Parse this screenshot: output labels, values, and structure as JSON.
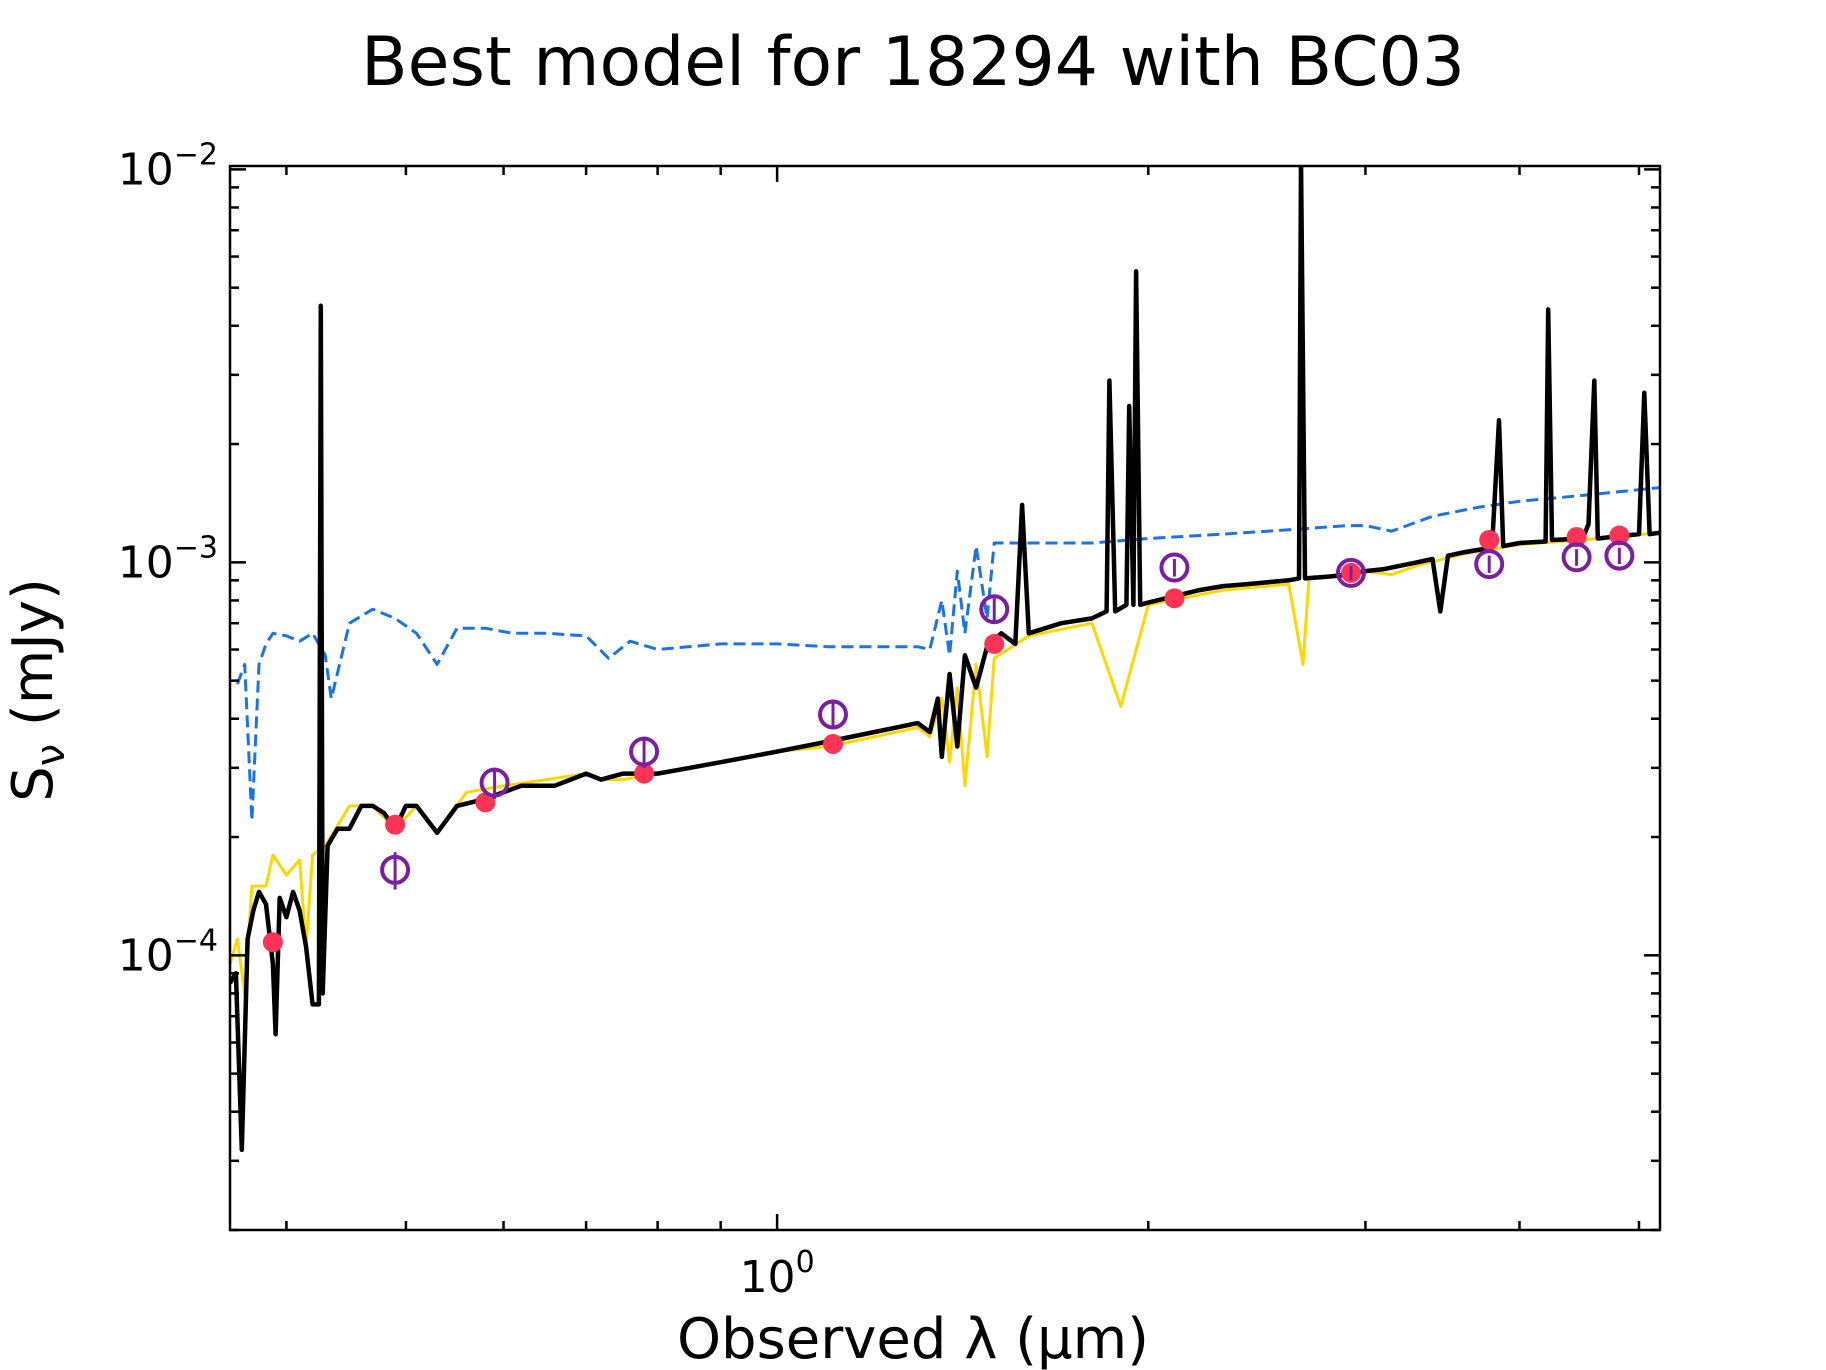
{
  "chart_data": {
    "type": "line",
    "title": "Best model for 18294 with BC03",
    "xlabel": "Observed λ (μm)",
    "ylabel_main": "S",
    "ylabel_sub": "ν",
    "ylabel_unit": " (mJy)",
    "xscale": "log",
    "yscale": "log",
    "xlim": [
      0.36,
      5.2
    ],
    "ylim": [
      2e-05,
      0.0102
    ],
    "xticks": [
      {
        "base": "10",
        "exp": "0",
        "value": 1.0
      }
    ],
    "yticks": [
      {
        "base": "10",
        "exp": "−4",
        "value": 0.0001
      },
      {
        "base": "10",
        "exp": "−3",
        "value": 0.001
      },
      {
        "base": "10",
        "exp": "−2",
        "value": 0.01
      }
    ],
    "grid": false,
    "colors": {
      "model": "#000000",
      "attenuated_stellar": "#ffd700",
      "unattenuated_stellar": "#1a73e8",
      "model_fluxes": "#ff3355",
      "observed_fluxes": "#7b1fa2"
    },
    "series": [
      {
        "key": "unattenuated_stellar",
        "style": "dashed",
        "points": [
          [
            0.365,
            0.00049
          ],
          [
            0.37,
            0.00055
          ],
          [
            0.375,
            0.00022
          ],
          [
            0.38,
            0.00055
          ],
          [
            0.385,
            0.00062
          ],
          [
            0.39,
            0.00066
          ],
          [
            0.4,
            0.00065
          ],
          [
            0.41,
            0.00063
          ],
          [
            0.42,
            0.00066
          ],
          [
            0.43,
            0.00058
          ],
          [
            0.435,
            0.00045
          ],
          [
            0.45,
            0.0007
          ],
          [
            0.47,
            0.00076
          ],
          [
            0.49,
            0.00072
          ],
          [
            0.51,
            0.00066
          ],
          [
            0.53,
            0.00055
          ],
          [
            0.55,
            0.00068
          ],
          [
            0.58,
            0.00068
          ],
          [
            0.61,
            0.00066
          ],
          [
            0.65,
            0.00066
          ],
          [
            0.7,
            0.00065
          ],
          [
            0.73,
            0.00057
          ],
          [
            0.76,
            0.00063
          ],
          [
            0.8,
            0.0006
          ],
          [
            0.9,
            0.00062
          ],
          [
            1.0,
            0.00062
          ],
          [
            1.1,
            0.00061
          ],
          [
            1.2,
            0.00061
          ],
          [
            1.3,
            0.00061
          ],
          [
            1.33,
            0.0006
          ],
          [
            1.36,
            0.0008
          ],
          [
            1.38,
            0.00058
          ],
          [
            1.4,
            0.00095
          ],
          [
            1.42,
            0.00066
          ],
          [
            1.45,
            0.0011
          ],
          [
            1.48,
            0.00072
          ],
          [
            1.5,
            0.00112
          ],
          [
            1.6,
            0.00112
          ],
          [
            1.8,
            0.00112
          ],
          [
            2.0,
            0.00115
          ],
          [
            2.3,
            0.00118
          ],
          [
            2.6,
            0.00121
          ],
          [
            2.9,
            0.00124
          ],
          [
            3.0,
            0.00124
          ],
          [
            3.15,
            0.0012
          ],
          [
            3.4,
            0.00131
          ],
          [
            3.7,
            0.00138
          ],
          [
            4.0,
            0.00143
          ],
          [
            4.5,
            0.00148
          ],
          [
            5.2,
            0.00155
          ]
        ]
      },
      {
        "key": "attenuated_stellar",
        "style": "solid",
        "points": [
          [
            0.36,
            9.5e-05
          ],
          [
            0.365,
            0.00011
          ],
          [
            0.37,
            8e-05
          ],
          [
            0.375,
            0.00015
          ],
          [
            0.385,
            0.00015
          ],
          [
            0.39,
            0.00018
          ],
          [
            0.4,
            0.00016
          ],
          [
            0.41,
            0.000175
          ],
          [
            0.415,
            0.000105
          ],
          [
            0.42,
            0.00018
          ],
          [
            0.43,
            0.00019
          ],
          [
            0.45,
            0.00024
          ],
          [
            0.47,
            0.00024
          ],
          [
            0.49,
            0.00021
          ],
          [
            0.51,
            0.00024
          ],
          [
            0.53,
            0.000205
          ],
          [
            0.56,
            0.00026
          ],
          [
            0.6,
            0.00027
          ],
          [
            0.65,
            0.00028
          ],
          [
            0.7,
            0.00029
          ],
          [
            0.72,
            0.00028
          ],
          [
            0.75,
            0.00028
          ],
          [
            0.8,
            0.00029
          ],
          [
            0.9,
            0.00031
          ],
          [
            1.0,
            0.00033
          ],
          [
            1.1,
            0.00034
          ],
          [
            1.2,
            0.00036
          ],
          [
            1.3,
            0.00038
          ],
          [
            1.33,
            0.00036
          ],
          [
            1.36,
            0.00045
          ],
          [
            1.38,
            0.00031
          ],
          [
            1.4,
            0.00048
          ],
          [
            1.42,
            0.00027
          ],
          [
            1.45,
            0.00055
          ],
          [
            1.48,
            0.00032
          ],
          [
            1.5,
            0.00057
          ],
          [
            1.6,
            0.00065
          ],
          [
            1.8,
            0.0007
          ],
          [
            1.9,
            0.00043
          ],
          [
            2.0,
            0.00078
          ],
          [
            2.3,
            0.00085
          ],
          [
            2.6,
            0.00088
          ],
          [
            2.67,
            0.00055
          ],
          [
            2.7,
            0.00091
          ],
          [
            3.0,
            0.00095
          ],
          [
            3.15,
            0.00093
          ],
          [
            3.3,
            0.00098
          ],
          [
            3.6,
            0.00105
          ],
          [
            4.0,
            0.00111
          ],
          [
            4.5,
            0.00114
          ],
          [
            5.2,
            0.00119
          ]
        ]
      },
      {
        "key": "model",
        "style": "solid",
        "points": [
          [
            0.36,
            8.5e-05
          ],
          [
            0.364,
            9e-05
          ],
          [
            0.368,
            3.2e-05
          ],
          [
            0.372,
            0.00011
          ],
          [
            0.376,
            0.00013
          ],
          [
            0.38,
            0.000145
          ],
          [
            0.385,
            0.000135
          ],
          [
            0.39,
            9.5e-05
          ],
          [
            0.392,
            6.3e-05
          ],
          [
            0.395,
            0.00014
          ],
          [
            0.4,
            0.000125
          ],
          [
            0.405,
            0.000145
          ],
          [
            0.41,
            0.00013
          ],
          [
            0.415,
            0.000105
          ],
          [
            0.42,
            7.5e-05
          ],
          [
            0.425,
            7.5e-05
          ],
          [
            0.4265,
            0.0045
          ],
          [
            0.428,
            8e-05
          ],
          [
            0.432,
            0.00019
          ],
          [
            0.44,
            0.00021
          ],
          [
            0.45,
            0.00021
          ],
          [
            0.46,
            0.00024
          ],
          [
            0.47,
            0.00024
          ],
          [
            0.48,
            0.00023
          ],
          [
            0.49,
            0.00021
          ],
          [
            0.5,
            0.00024
          ],
          [
            0.51,
            0.00024
          ],
          [
            0.53,
            0.000205
          ],
          [
            0.55,
            0.00024
          ],
          [
            0.58,
            0.00025
          ],
          [
            0.62,
            0.00027
          ],
          [
            0.66,
            0.00027
          ],
          [
            0.7,
            0.00029
          ],
          [
            0.72,
            0.00028
          ],
          [
            0.75,
            0.00029
          ],
          [
            0.8,
            0.00029
          ],
          [
            0.85,
            0.0003
          ],
          [
            0.9,
            0.00031
          ],
          [
            1.0,
            0.00033
          ],
          [
            1.1,
            0.00035
          ],
          [
            1.2,
            0.00037
          ],
          [
            1.3,
            0.00039
          ],
          [
            1.33,
            0.00037
          ],
          [
            1.35,
            0.00045
          ],
          [
            1.36,
            0.00032
          ],
          [
            1.38,
            0.00052
          ],
          [
            1.4,
            0.00034
          ],
          [
            1.42,
            0.00058
          ],
          [
            1.45,
            0.00048
          ],
          [
            1.48,
            0.00061
          ],
          [
            1.52,
            0.00066
          ],
          [
            1.56,
            0.00062
          ],
          [
            1.58,
            0.0014
          ],
          [
            1.6,
            0.00066
          ],
          [
            1.7,
            0.0007
          ],
          [
            1.8,
            0.00072
          ],
          [
            1.85,
            0.00075
          ],
          [
            1.86,
            0.0029
          ],
          [
            1.88,
            0.00075
          ],
          [
            1.92,
            0.00078
          ],
          [
            1.93,
            0.0025
          ],
          [
            1.945,
            0.00078
          ],
          [
            1.955,
            0.0055
          ],
          [
            1.97,
            0.00078
          ],
          [
            2.0,
            0.00079
          ],
          [
            2.1,
            0.00082
          ],
          [
            2.2,
            0.00085
          ],
          [
            2.3,
            0.00087
          ],
          [
            2.4,
            0.00088
          ],
          [
            2.5,
            0.00089
          ],
          [
            2.6,
            0.0009
          ],
          [
            2.65,
            0.00091
          ],
          [
            2.66,
            0.0105
          ],
          [
            2.68,
            0.00091
          ],
          [
            2.8,
            0.00092
          ],
          [
            2.9,
            0.00093
          ],
          [
            3.0,
            0.00095
          ],
          [
            3.1,
            0.00096
          ],
          [
            3.2,
            0.00098
          ],
          [
            3.3,
            0.001
          ],
          [
            3.4,
            0.00102
          ],
          [
            3.45,
            0.00075
          ],
          [
            3.5,
            0.00104
          ],
          [
            3.6,
            0.00106
          ],
          [
            3.8,
            0.00109
          ],
          [
            3.85,
            0.0023
          ],
          [
            3.88,
            0.0011
          ],
          [
            4.0,
            0.00112
          ],
          [
            4.2,
            0.00113
          ],
          [
            4.22,
            0.0044
          ],
          [
            4.25,
            0.00114
          ],
          [
            4.5,
            0.00115
          ],
          [
            4.55,
            0.00125
          ],
          [
            4.6,
            0.0029
          ],
          [
            4.63,
            0.00115
          ],
          [
            5.0,
            0.00118
          ],
          [
            5.05,
            0.0027
          ],
          [
            5.1,
            0.00118
          ],
          [
            5.2,
            0.00119
          ]
        ]
      }
    ],
    "model_fluxes": [
      {
        "x": 0.39,
        "y": 0.000108
      },
      {
        "x": 0.49,
        "y": 0.000215
      },
      {
        "x": 0.58,
        "y": 0.000245
      },
      {
        "x": 0.78,
        "y": 0.00029
      },
      {
        "x": 1.11,
        "y": 0.000345
      },
      {
        "x": 1.5,
        "y": 0.00062
      },
      {
        "x": 2.1,
        "y": 0.00081
      },
      {
        "x": 2.92,
        "y": 0.00094
      },
      {
        "x": 3.78,
        "y": 0.00114
      },
      {
        "x": 4.45,
        "y": 0.00116
      },
      {
        "x": 4.82,
        "y": 0.00117
      }
    ],
    "observed_fluxes": [
      {
        "x": 0.49,
        "y": 0.000165,
        "yerr": 1.8e-05
      },
      {
        "x": 0.59,
        "y": 0.000275,
        "yerr": 2.5e-05
      },
      {
        "x": 0.78,
        "y": 0.00033,
        "yerr": 3e-05
      },
      {
        "x": 1.11,
        "y": 0.00041,
        "yerr": 3e-05
      },
      {
        "x": 1.5,
        "y": 0.00076,
        "yerr": 5e-05
      },
      {
        "x": 2.1,
        "y": 0.00097,
        "yerr": 5e-05
      },
      {
        "x": 2.92,
        "y": 0.00094,
        "yerr": 4e-05
      },
      {
        "x": 3.78,
        "y": 0.00099,
        "yerr": 5e-05
      },
      {
        "x": 4.45,
        "y": 0.00103,
        "yerr": 5e-05
      },
      {
        "x": 4.82,
        "y": 0.00104,
        "yerr": 5e-05
      }
    ]
  }
}
